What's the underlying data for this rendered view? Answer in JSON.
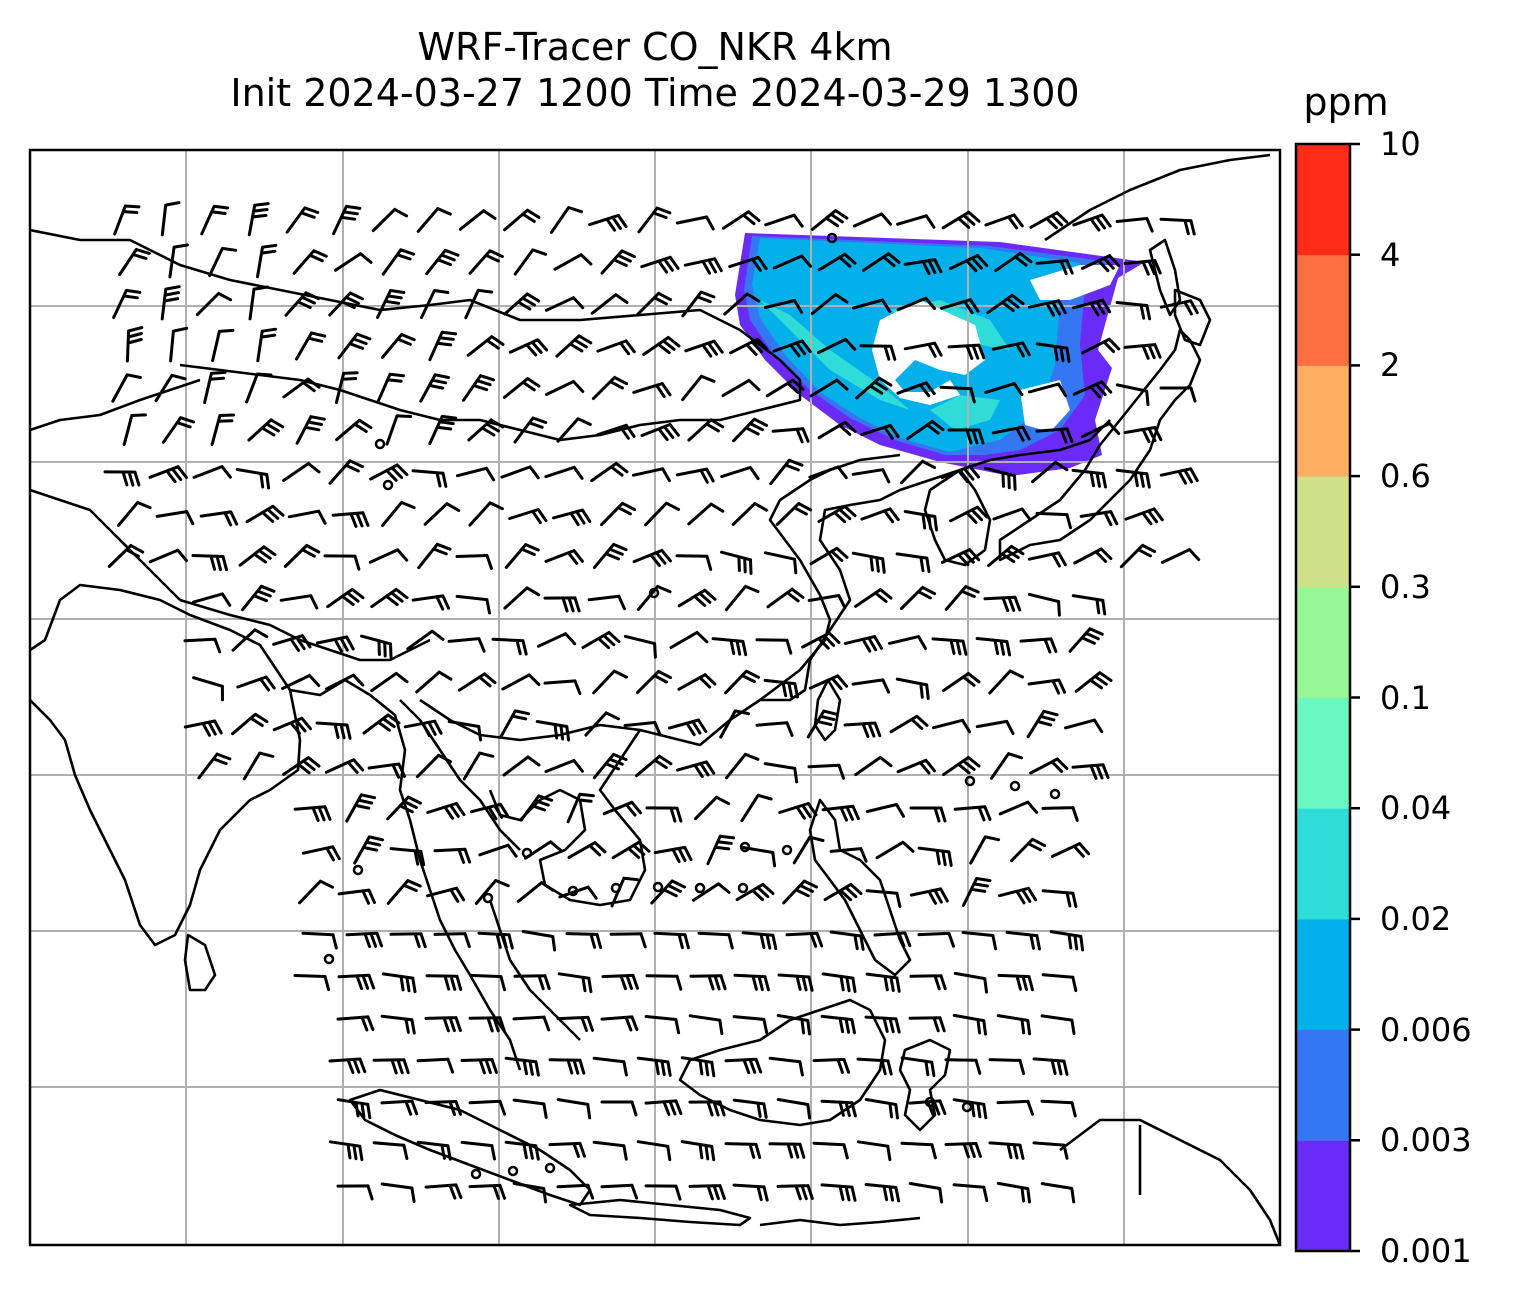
{
  "title": {
    "line1": "WRF-Tracer CO_NKR 4km",
    "line2": "Init 2024-03-27 1200 Time 2024-03-29 1300"
  },
  "colorbar": {
    "units": "ppm",
    "ticks": [
      "0.001",
      "0.003",
      "0.006",
      "0.02",
      "0.04",
      "0.1",
      "0.3",
      "0.6",
      "2",
      "4",
      "10"
    ],
    "colors": [
      "#6a2bf7",
      "#3577f2",
      "#03b0ea",
      "#2fdcd7",
      "#69f8c1",
      "#98f796",
      "#cfe088",
      "#fdae61",
      "#fe7040",
      "#ff2b16"
    ]
  },
  "map": {
    "gridlines": true,
    "coastline_color": "#000000",
    "grid_color": "#b0b0b0",
    "wind_barbs": "black"
  }
}
